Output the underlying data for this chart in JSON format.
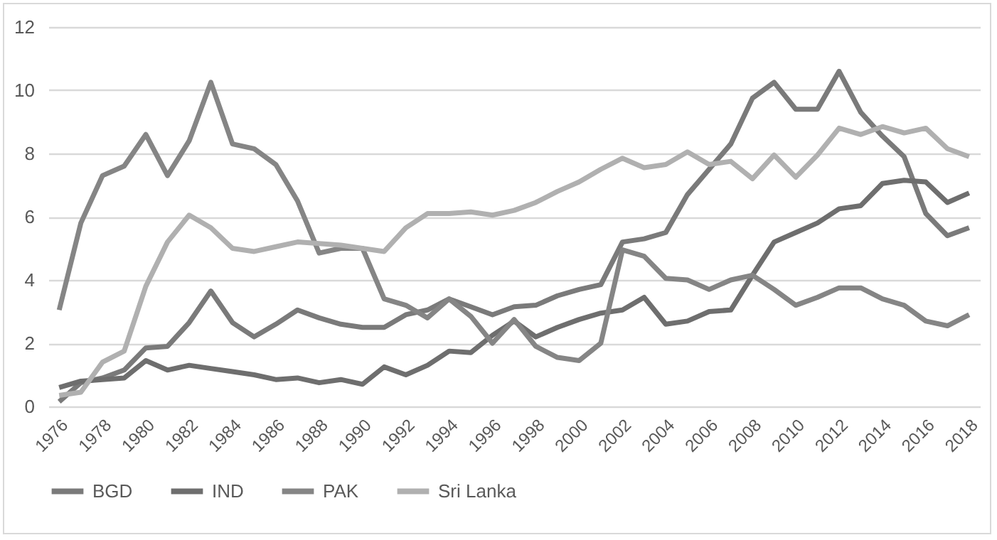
{
  "chart_data": {
    "type": "line",
    "categories": [
      "1976",
      null,
      "1978",
      null,
      "1980",
      null,
      "1982",
      null,
      "1984",
      null,
      "1986",
      null,
      "1988",
      null,
      "1990",
      null,
      "1992",
      null,
      "1994",
      null,
      "1996",
      null,
      "1998",
      null,
      "2000",
      null,
      "2002",
      null,
      "2004",
      null,
      "2006",
      null,
      "2008",
      null,
      "2010",
      null,
      "2012",
      null,
      "2014",
      null,
      "2016",
      null,
      "2018"
    ],
    "series": [
      {
        "name": "BGD",
        "color": "#7a7a7a",
        "values": [
          0.15,
          0.75,
          0.9,
          1.15,
          1.85,
          1.9,
          2.65,
          3.65,
          2.65,
          2.2,
          2.6,
          3.05,
          2.8,
          2.6,
          2.5,
          2.5,
          2.9,
          3.05,
          3.4,
          3.15,
          2.9,
          3.15,
          3.2,
          3.5,
          3.7,
          3.85,
          5.2,
          5.3,
          5.5,
          6.7,
          7.5,
          8.3,
          9.75,
          10.25,
          9.4,
          9.4,
          10.6,
          9.3,
          8.55,
          7.9,
          6.1,
          5.4,
          5.65
        ]
      },
      {
        "name": "IND",
        "color": "#6e6e6e",
        "values": [
          0.6,
          0.8,
          0.85,
          0.9,
          1.45,
          1.15,
          1.3,
          1.2,
          1.1,
          1.0,
          0.85,
          0.9,
          0.75,
          0.85,
          0.7,
          1.25,
          1.0,
          1.3,
          1.75,
          1.7,
          2.25,
          2.7,
          2.2,
          2.5,
          2.75,
          2.95,
          3.05,
          3.45,
          2.6,
          2.7,
          3.0,
          3.05,
          4.15,
          5.2,
          5.5,
          5.8,
          6.25,
          6.35,
          7.05,
          7.15,
          7.1,
          6.45,
          6.75
        ]
      },
      {
        "name": "PAK",
        "color": "#858585",
        "values": [
          3.05,
          5.8,
          7.3,
          7.6,
          8.6,
          7.3,
          8.4,
          10.25,
          8.3,
          8.15,
          7.65,
          6.5,
          4.85,
          5.0,
          5.0,
          3.4,
          3.2,
          2.8,
          3.4,
          2.85,
          2.0,
          2.75,
          1.9,
          1.55,
          1.45,
          2.0,
          4.95,
          4.75,
          4.05,
          4.0,
          3.7,
          4.0,
          4.15,
          3.7,
          3.2,
          3.45,
          3.75,
          3.75,
          3.4,
          3.2,
          2.7,
          2.55,
          2.9
        ]
      },
      {
        "name": "Sri Lanka",
        "color": "#b0b0b0",
        "values": [
          0.35,
          0.45,
          1.4,
          1.75,
          3.8,
          5.2,
          6.05,
          5.65,
          5.0,
          4.9,
          5.05,
          5.2,
          5.15,
          5.1,
          5.0,
          4.9,
          5.65,
          6.1,
          6.1,
          6.15,
          6.05,
          6.2,
          6.45,
          6.8,
          7.1,
          7.5,
          7.85,
          7.55,
          7.65,
          8.05,
          7.65,
          7.75,
          7.2,
          7.95,
          7.25,
          7.95,
          8.8,
          8.6,
          8.85,
          8.65,
          8.8,
          8.15,
          7.9
        ]
      }
    ],
    "ylim": [
      0,
      12
    ],
    "yticks": [
      0,
      2,
      4,
      6,
      8,
      10,
      12
    ],
    "grid": "y",
    "legend": "bottom",
    "line_style": "solid"
  }
}
